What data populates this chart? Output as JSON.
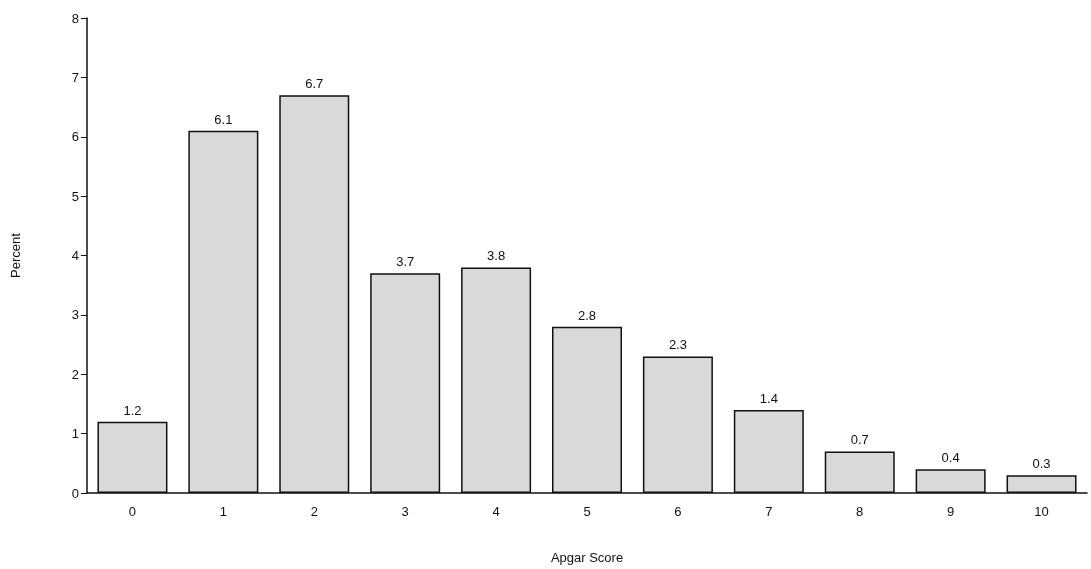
{
  "chart_data": {
    "type": "bar",
    "xlabel": "Apgar Score",
    "ylabel": "Percent",
    "categories": [
      "0",
      "1",
      "2",
      "3",
      "4",
      "5",
      "6",
      "7",
      "8",
      "9",
      "10"
    ],
    "values": [
      1.2,
      6.1,
      6.7,
      3.7,
      3.8,
      2.8,
      2.3,
      1.4,
      0.7,
      0.4,
      0.3
    ],
    "color": "#d9d9d9",
    "ylim": [
      0,
      8
    ],
    "yticks": [
      0,
      1,
      2,
      3,
      4,
      5,
      6,
      7,
      8
    ],
    "grid": false,
    "data_labels": true
  }
}
